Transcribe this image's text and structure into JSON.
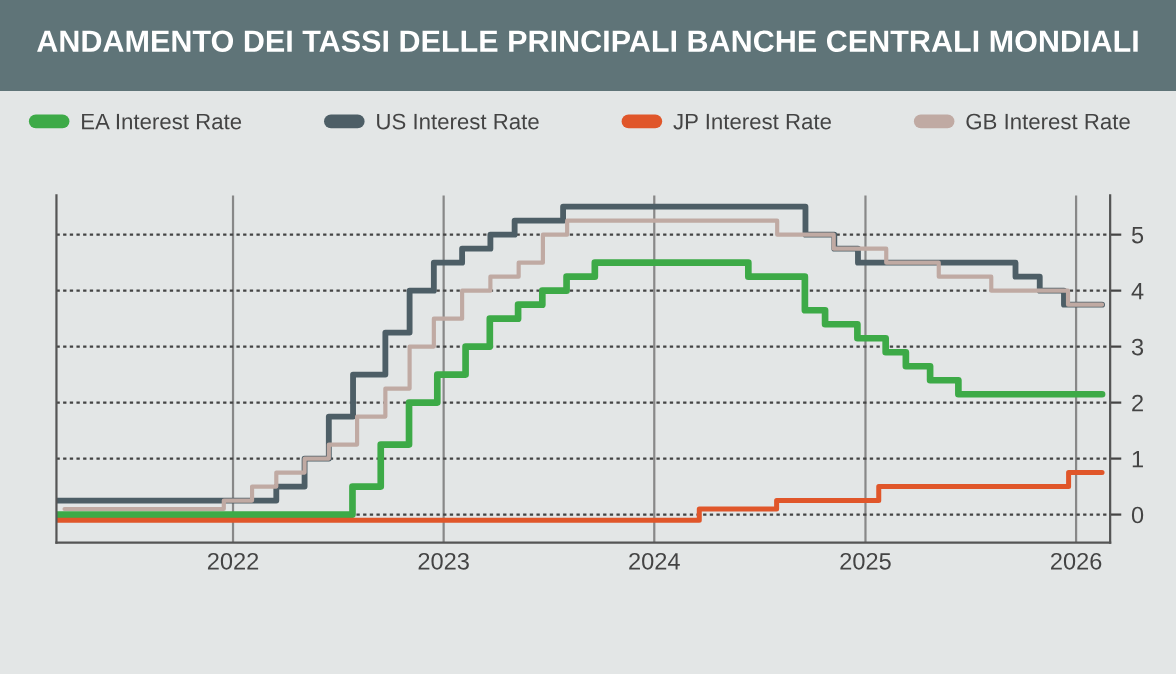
{
  "chart_data": {
    "type": "step",
    "title": "ANDAMENTO DEI TASSI DELLE PRINCIPALI BANCHE CENTRALI MONDIALI",
    "legend": "top",
    "grid": true,
    "xlim": [
      "2021-03-01",
      "2026-03-01"
    ],
    "xticks": [
      {
        "value": "2022-01-01",
        "label": "2022"
      },
      {
        "value": "2023-01-01",
        "label": "2023"
      },
      {
        "value": "2024-01-01",
        "label": "2024"
      },
      {
        "value": "2025-01-01",
        "label": "2025"
      },
      {
        "value": "2026-01-01",
        "label": "2026"
      }
    ],
    "ylim": [
      -0.5,
      5.7
    ],
    "yticks": [
      0,
      1,
      2,
      3,
      4,
      5
    ],
    "series": [
      {
        "name": "EA Interest Rate",
        "color": "#3daa47",
        "x": [
          "2021-03-01",
          "2022-07-27",
          "2022-09-14",
          "2022-11-02",
          "2022-12-21",
          "2023-02-08",
          "2023-03-22",
          "2023-05-10",
          "2023-06-21",
          "2023-08-02",
          "2023-09-20",
          "2024-06-12",
          "2024-09-18",
          "2024-10-23",
          "2024-12-18",
          "2025-02-05",
          "2025-03-12",
          "2025-04-23",
          "2025-06-11",
          "2026-02-15"
        ],
        "values": [
          0,
          0.5,
          1.25,
          2.0,
          2.5,
          3.0,
          3.5,
          3.75,
          4.0,
          4.25,
          4.5,
          4.25,
          3.65,
          3.4,
          3.15,
          2.9,
          2.65,
          2.4,
          2.15,
          2.15
        ]
      },
      {
        "name": "US Interest Rate",
        "color": "#4d5e66",
        "x": [
          "2021-03-01",
          "2022-03-17",
          "2022-05-05",
          "2022-06-16",
          "2022-07-28",
          "2022-09-22",
          "2022-11-03",
          "2022-12-15",
          "2023-02-02",
          "2023-03-23",
          "2023-05-04",
          "2023-07-27",
          "2024-09-19",
          "2024-11-08",
          "2024-12-19",
          "2025-09-18",
          "2025-10-30",
          "2025-12-11",
          "2026-02-15"
        ],
        "values": [
          0.25,
          0.5,
          1.0,
          1.75,
          2.5,
          3.25,
          4.0,
          4.5,
          4.75,
          5.0,
          5.25,
          5.5,
          5.0,
          4.75,
          4.5,
          4.25,
          4.0,
          3.75,
          3.75
        ]
      },
      {
        "name": "JP Interest Rate",
        "color": "#e0562a",
        "x": [
          "2021-03-01",
          "2024-03-19",
          "2024-07-31",
          "2025-01-24",
          "2025-12-19",
          "2026-02-15"
        ],
        "values": [
          -0.1,
          0.1,
          0.25,
          0.5,
          0.75,
          0.75
        ]
      },
      {
        "name": "GB Interest Rate",
        "color": "#c0aaa3",
        "x": [
          "2021-03-15",
          "2021-12-16",
          "2022-02-03",
          "2022-03-17",
          "2022-05-05",
          "2022-06-16",
          "2022-08-04",
          "2022-09-22",
          "2022-11-03",
          "2022-12-15",
          "2023-02-02",
          "2023-03-23",
          "2023-05-11",
          "2023-06-22",
          "2023-08-03",
          "2024-08-01",
          "2024-11-07",
          "2025-02-06",
          "2025-05-08",
          "2025-08-07",
          "2025-12-18",
          "2026-02-15"
        ],
        "values": [
          0.1,
          0.25,
          0.5,
          0.75,
          1.0,
          1.25,
          1.75,
          2.25,
          3.0,
          3.5,
          4.0,
          4.25,
          4.5,
          5.0,
          5.25,
          5.0,
          4.75,
          4.5,
          4.25,
          4.0,
          3.75,
          3.75
        ]
      }
    ]
  }
}
